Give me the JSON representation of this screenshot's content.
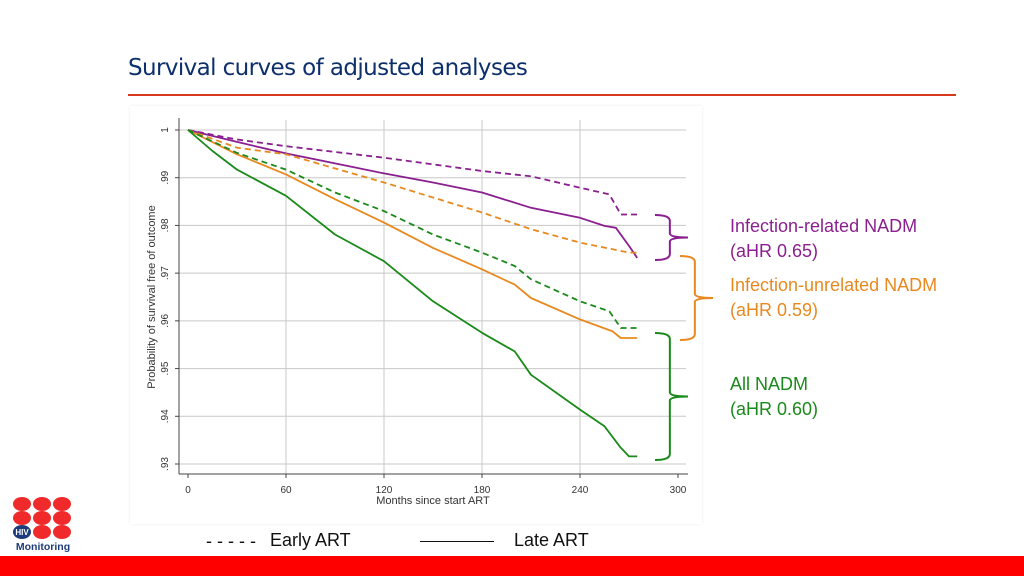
{
  "slide": {
    "title": "Survival curves of adjusted analyses",
    "accent_color": "#d6371e",
    "footer_color": "#ff0000",
    "logo_text": "HIV Monitoring"
  },
  "annotations": [
    {
      "label": "Infection-related NADM",
      "ahr": "(aHR 0.65)",
      "color": "#8b1f8f"
    },
    {
      "label": "Infection-unrelated NADM",
      "ahr": "(aHR 0.59)",
      "color": "#e8891f"
    },
    {
      "label": "All NADM",
      "ahr": "(aHR 0.60)",
      "color": "#1a8a1a"
    }
  ],
  "legend": {
    "early": {
      "swatch": "- - - - -",
      "label": "Early ART"
    },
    "late": {
      "label": "Late ART"
    }
  },
  "chart_data": {
    "type": "line",
    "title": "",
    "xlabel": "Months since start ART",
    "ylabel": "Probability of survival free of outcome",
    "xlim": [
      0,
      300
    ],
    "ylim": [
      0.93,
      1
    ],
    "xticks": [
      "0",
      "60",
      "120",
      "180",
      "240",
      "300"
    ],
    "yticks": [
      "1",
      ".99",
      ".98",
      ".97",
      ".96",
      ".95",
      ".94",
      ".93"
    ],
    "grid": true,
    "series": [
      {
        "group": "Infection-related NADM",
        "art": "Early ART",
        "style": "dashed",
        "color": "#8b1f8f",
        "x": [
          0,
          30,
          60,
          120,
          180,
          210,
          240,
          258,
          265,
          275
        ],
        "y": [
          1,
          0.998,
          0.9966,
          0.9942,
          0.9914,
          0.9903,
          0.9879,
          0.9865,
          0.9823,
          0.9823
        ]
      },
      {
        "group": "Infection-related NADM",
        "art": "Late ART",
        "style": "solid",
        "color": "#8b1f8f",
        "x": [
          0,
          30,
          60,
          90,
          120,
          150,
          180,
          210,
          240,
          255,
          262,
          270,
          275
        ],
        "y": [
          1,
          0.9975,
          0.9951,
          0.993,
          0.9909,
          0.989,
          0.9869,
          0.9837,
          0.9816,
          0.9799,
          0.9795,
          0.9757,
          0.9732
        ]
      },
      {
        "group": "Infection-unrelated NADM",
        "art": "Early ART",
        "style": "dashed",
        "color": "#e8891f",
        "x": [
          0,
          30,
          60,
          120,
          180,
          210,
          240,
          260,
          270,
          275
        ],
        "y": [
          1,
          0.9963,
          0.9949,
          0.989,
          0.9827,
          0.9792,
          0.9764,
          0.975,
          0.9743,
          0.9743
        ]
      },
      {
        "group": "Infection-unrelated NADM",
        "art": "Late ART",
        "style": "solid",
        "color": "#e8891f",
        "x": [
          0,
          30,
          60,
          90,
          120,
          150,
          180,
          200,
          210,
          240,
          260,
          265,
          275
        ],
        "y": [
          1,
          0.9949,
          0.9907,
          0.9855,
          0.9806,
          0.9753,
          0.9708,
          0.9676,
          0.9648,
          0.9603,
          0.9578,
          0.9564,
          0.9564
        ]
      },
      {
        "group": "All NADM",
        "art": "Early ART",
        "style": "dashed",
        "color": "#1a8a1a",
        "x": [
          0,
          30,
          60,
          90,
          120,
          150,
          180,
          200,
          210,
          240,
          258,
          265,
          275
        ],
        "y": [
          1,
          0.9952,
          0.9917,
          0.9869,
          0.983,
          0.9781,
          0.9743,
          0.9715,
          0.9687,
          0.9641,
          0.962,
          0.9585,
          0.9585
        ]
      },
      {
        "group": "All NADM",
        "art": "Late ART",
        "style": "solid",
        "color": "#1a8a1a",
        "x": [
          0,
          15,
          30,
          60,
          90,
          120,
          150,
          180,
          200,
          210,
          240,
          255,
          265,
          270,
          275
        ],
        "y": [
          1,
          0.9956,
          0.9917,
          0.9862,
          0.9781,
          0.9725,
          0.9641,
          0.9575,
          0.9536,
          0.9487,
          0.9414,
          0.9379,
          0.9334,
          0.9316,
          0.9316
        ]
      }
    ]
  }
}
